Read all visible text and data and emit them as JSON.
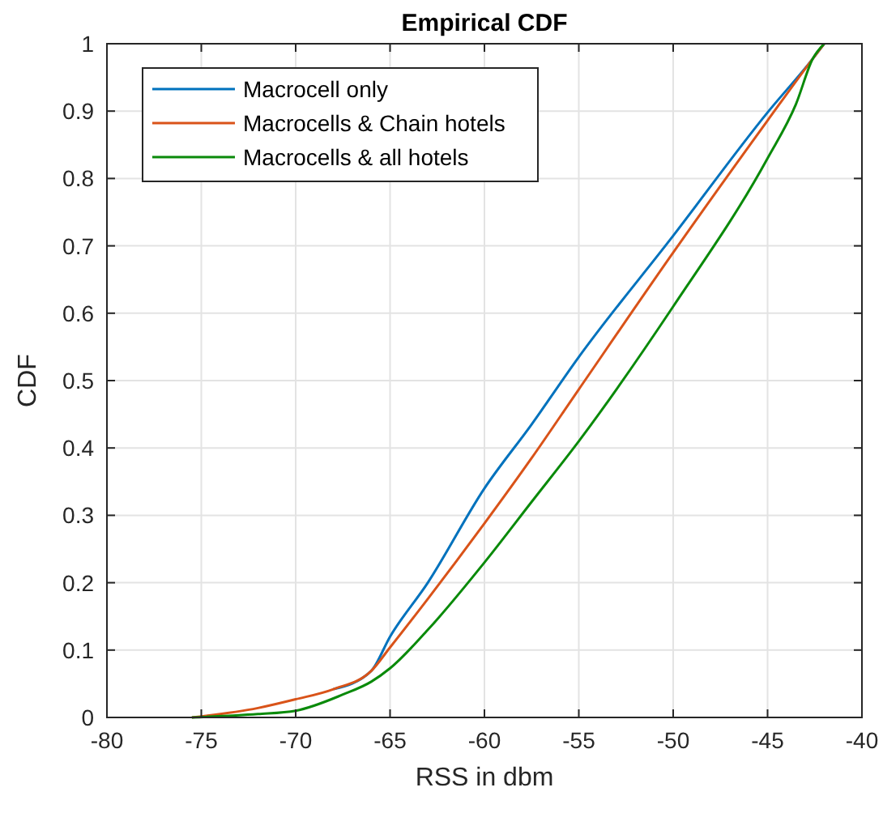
{
  "chart_data": {
    "type": "line",
    "title": "Empirical CDF",
    "xlabel": "RSS in dbm",
    "ylabel": "CDF",
    "xlim": [
      -80,
      -40
    ],
    "xticks": [
      -80,
      -75,
      -70,
      -65,
      -60,
      -55,
      -50,
      -45,
      -40
    ],
    "ylim": [
      0,
      1
    ],
    "yticks": [
      0,
      0.1,
      0.2,
      0.3,
      0.4,
      0.5,
      0.6,
      0.7,
      0.8,
      0.9,
      1
    ],
    "grid": true,
    "legend": "top left",
    "line_style": "solid",
    "series": [
      {
        "name": "Macrocell only",
        "color": "#0072bd",
        "x": [
          -68,
          -66,
          -65,
          -63,
          -60,
          -57.5,
          -55,
          -50,
          -45,
          -42.6,
          -42
        ],
        "values": [
          0.042,
          0.069,
          0.12,
          0.2,
          0.34,
          0.435,
          0.535,
          0.715,
          0.898,
          0.978,
          1
        ]
      },
      {
        "name": "Macrocells & Chain hotels",
        "color": "#d95319",
        "x": [
          -75.5,
          -72,
          -70,
          -68,
          -66,
          -65,
          -63,
          -60,
          -57.5,
          -55,
          -50,
          -45,
          -42.6,
          -42
        ],
        "values": [
          0,
          0.014,
          0.027,
          0.042,
          0.069,
          0.104,
          0.176,
          0.288,
          0.385,
          0.487,
          0.69,
          0.886,
          0.978,
          1
        ]
      },
      {
        "name": "Macrocells & all hotels",
        "color": "#0a8a0a",
        "x": [
          -75.5,
          -72,
          -70,
          -67.5,
          -66,
          -65,
          -63,
          -60,
          -57.5,
          -55,
          -50,
          -45,
          -43.5,
          -42.6,
          -42
        ],
        "values": [
          0,
          0.005,
          0.01,
          0.034,
          0.053,
          0.073,
          0.13,
          0.23,
          0.32,
          0.41,
          0.61,
          0.83,
          0.91,
          0.978,
          1
        ]
      }
    ]
  }
}
